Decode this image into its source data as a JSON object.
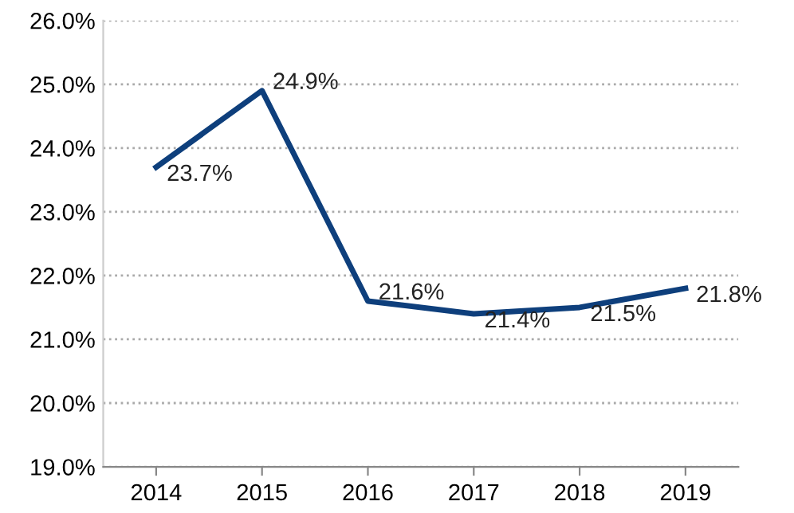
{
  "chart_data": {
    "type": "line",
    "categories": [
      "2014",
      "2015",
      "2016",
      "2017",
      "2018",
      "2019"
    ],
    "series": [
      {
        "color": "#0e3f7c",
        "values": [
          23.7,
          24.9,
          21.6,
          21.4,
          21.5,
          21.8
        ],
        "value_labels": [
          "23.7%",
          "24.9%",
          "21.6%",
          "21.4%",
          "21.5%",
          "21.8%"
        ]
      }
    ],
    "ylim": [
      19.0,
      26.0
    ],
    "yticks": [
      {
        "value": 19.0,
        "label": "19.0%"
      },
      {
        "value": 20.0,
        "label": "20.0%"
      },
      {
        "value": 21.0,
        "label": "21.0%"
      },
      {
        "value": 22.0,
        "label": "22.0%"
      },
      {
        "value": 23.0,
        "label": "23.0%"
      },
      {
        "value": 24.0,
        "label": "24.0%"
      },
      {
        "value": 25.0,
        "label": "25.0%"
      },
      {
        "value": 26.0,
        "label": "26.0%"
      }
    ],
    "grid": "y",
    "marker": "none",
    "line_style": "solid"
  }
}
